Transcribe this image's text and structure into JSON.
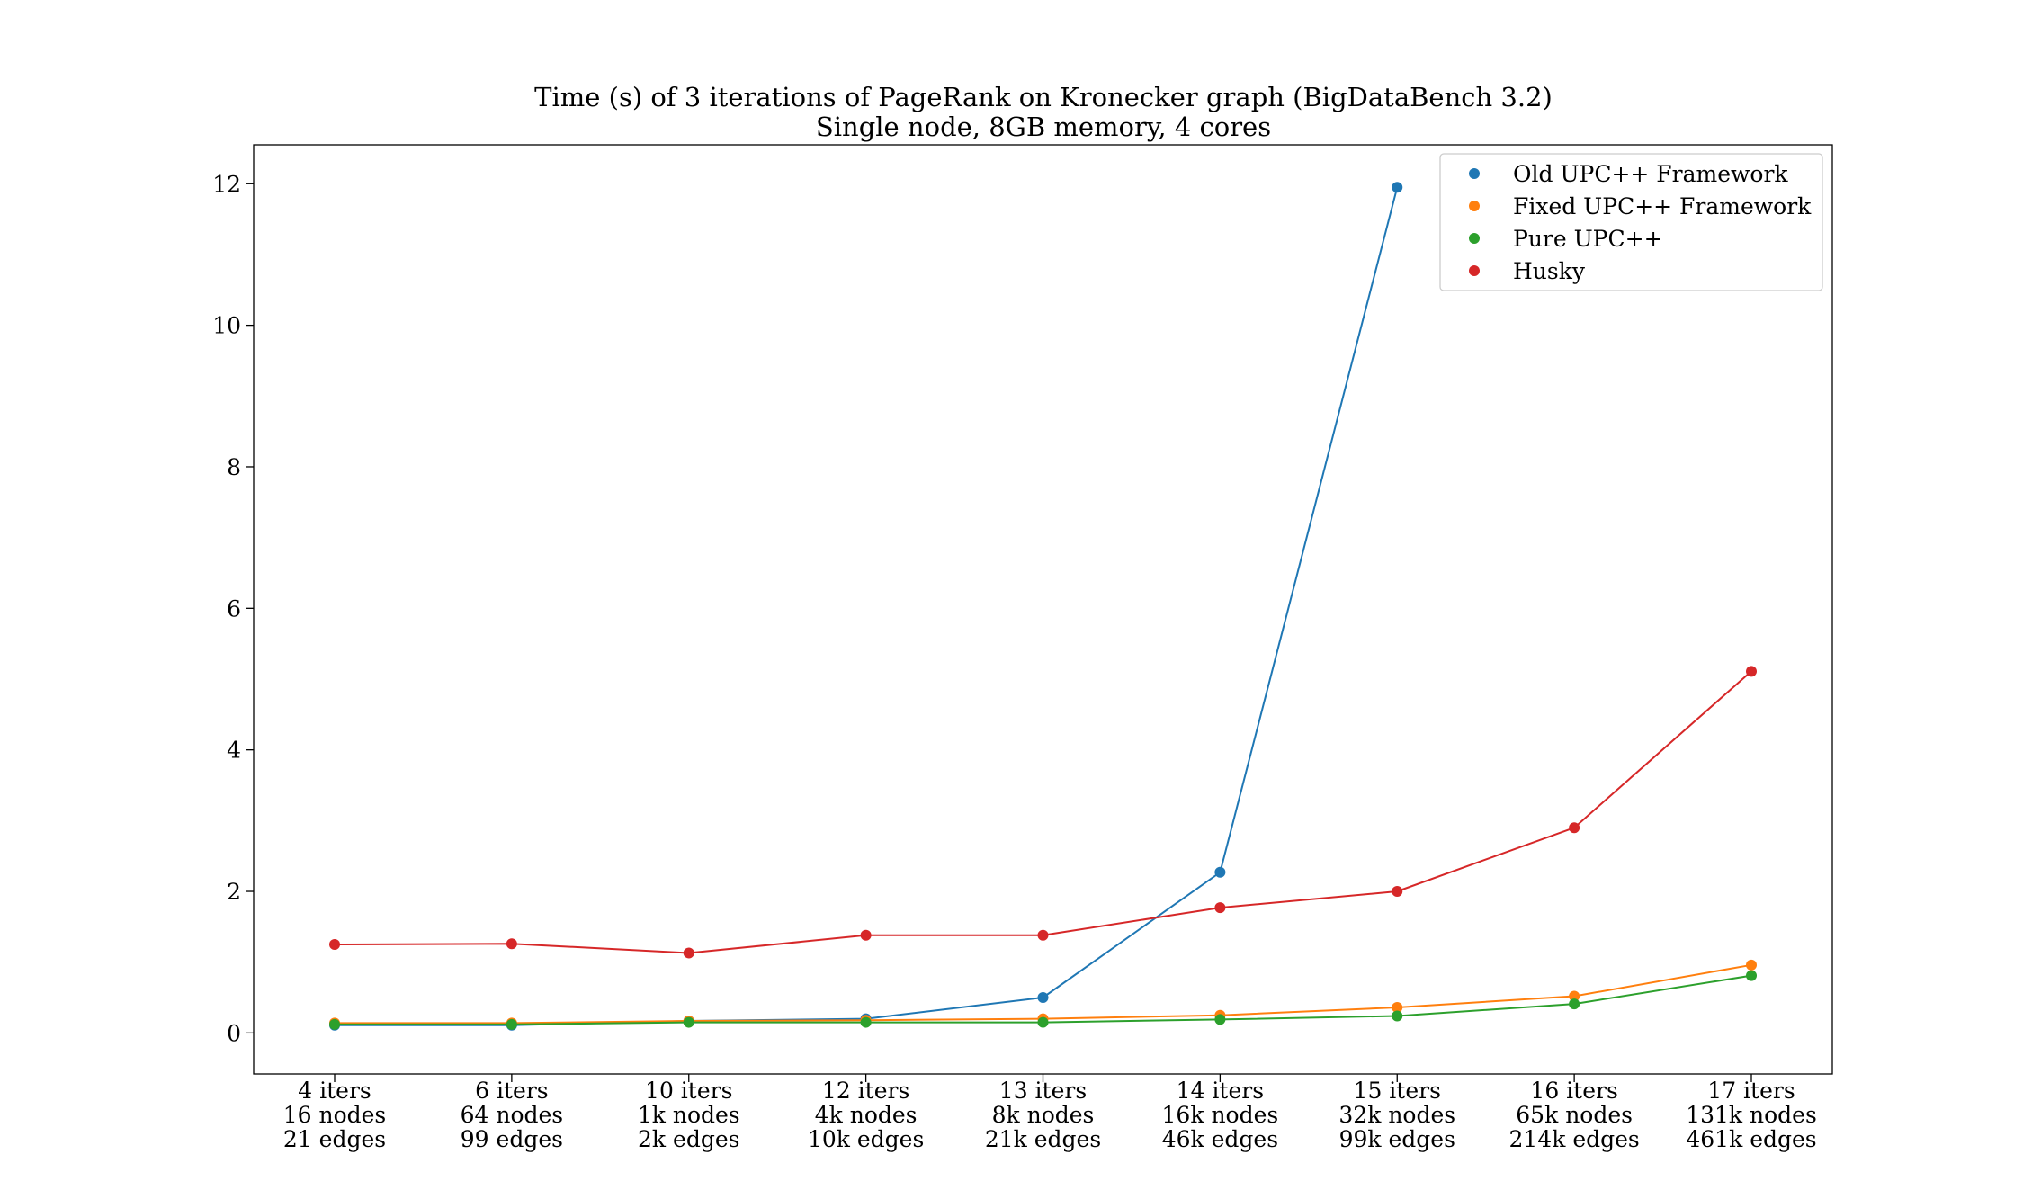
{
  "chart_data": {
    "type": "line",
    "title": "Time (s) of 3 iterations of PageRank on Kronecker graph (BigDataBench 3.2)",
    "subtitle": "Single node, 8GB memory, 4 cores",
    "xlabel": "",
    "ylabel": "",
    "ylim": [
      -0.58,
      12.55
    ],
    "yticks": [
      "0",
      "2",
      "4",
      "6",
      "8",
      "10",
      "12"
    ],
    "ytick_values": [
      0,
      2,
      4,
      6,
      8,
      10,
      12
    ],
    "grid": false,
    "legend_position": "top-right",
    "categories": [
      [
        "4 iters",
        "16 nodes",
        "21 edges"
      ],
      [
        "6 iters",
        "64 nodes",
        "99 edges"
      ],
      [
        "10 iters",
        "1k nodes",
        "2k edges"
      ],
      [
        "12 iters",
        "4k nodes",
        "10k edges"
      ],
      [
        "13 iters",
        "8k nodes",
        "21k edges"
      ],
      [
        "14 iters",
        "16k nodes",
        "46k edges"
      ],
      [
        "15 iters",
        "32k nodes",
        "99k edges"
      ],
      [
        "16 iters",
        "65k nodes",
        "214k edges"
      ],
      [
        "17 iters",
        "131k nodes",
        "461k edges"
      ]
    ],
    "series": [
      {
        "name": "Old UPC++ Framework",
        "color": "#1f77b4",
        "values": [
          0.11,
          0.11,
          0.17,
          0.2,
          0.5,
          2.27,
          11.95,
          null,
          null
        ]
      },
      {
        "name": "Fixed UPC++ Framework",
        "color": "#ff7f0e",
        "values": [
          0.14,
          0.14,
          0.17,
          0.18,
          0.2,
          0.25,
          0.36,
          0.52,
          0.96
        ]
      },
      {
        "name": "Pure UPC++",
        "color": "#2ca02c",
        "values": [
          0.12,
          0.12,
          0.15,
          0.15,
          0.15,
          0.19,
          0.24,
          0.41,
          0.81
        ]
      },
      {
        "name": "Husky",
        "color": "#d62728",
        "values": [
          1.25,
          1.26,
          1.13,
          1.38,
          1.38,
          1.77,
          2.0,
          2.9,
          5.11
        ]
      }
    ]
  }
}
